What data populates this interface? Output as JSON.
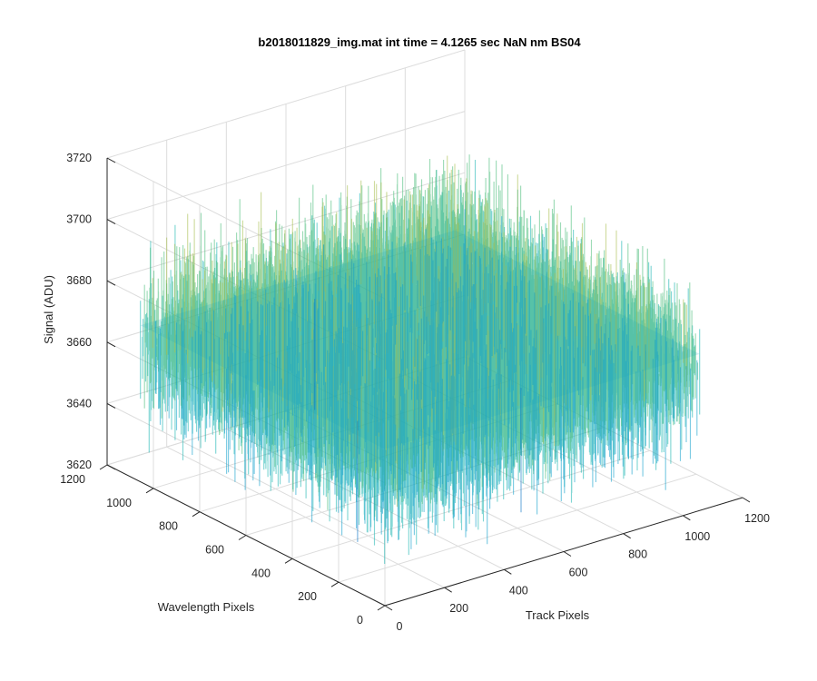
{
  "chart_data": {
    "type": "surface",
    "title": "b2018011829_img.mat int time = 4.1265 sec  NaN nm BS04",
    "xlabel": "Track Pixels",
    "ylabel": "Wavelength Pixels",
    "zlabel": "Signal (ADU)",
    "xlim": [
      0,
      1200
    ],
    "ylim": [
      0,
      1200
    ],
    "zlim": [
      3620,
      3720
    ],
    "x_ticks": [
      0,
      200,
      400,
      600,
      800,
      1000,
      1200
    ],
    "y_ticks": [
      0,
      200,
      400,
      600,
      800,
      1000,
      1200
    ],
    "z_ticks": [
      3620,
      3640,
      3660,
      3680,
      3700,
      3720
    ],
    "data_extent": {
      "x": [
        0,
        1056
      ],
      "y": [
        0,
        1056
      ]
    },
    "signal_mean": 3666,
    "signal_range": [
      3630,
      3705
    ],
    "colormap": [
      "#0a72c4",
      "#12a0cc",
      "#1ab5b0",
      "#4cbd7c",
      "#a8c050",
      "#e6c040"
    ],
    "grid": true,
    "box": false
  }
}
